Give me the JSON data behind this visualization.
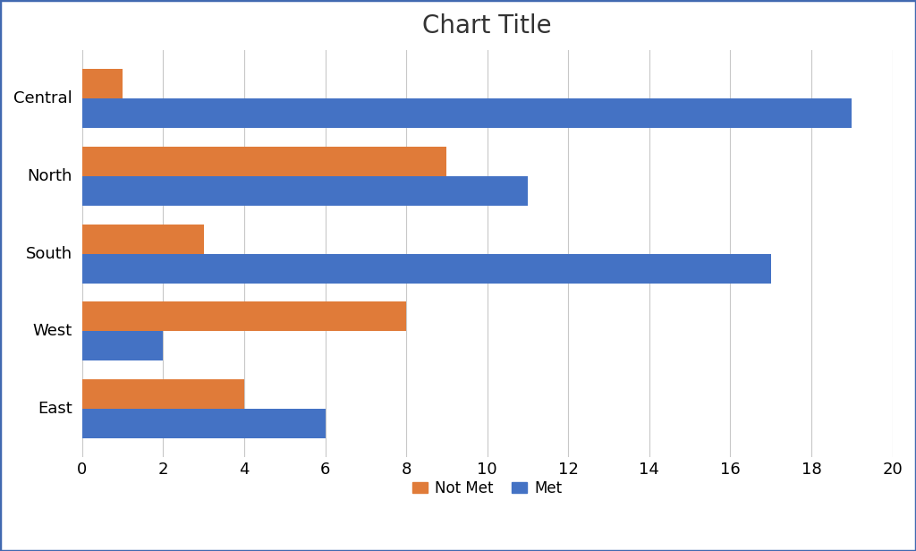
{
  "title": "Chart Title",
  "categories": [
    "Central",
    "North",
    "South",
    "West",
    "East"
  ],
  "not_met": [
    1,
    9,
    3,
    8,
    4
  ],
  "met": [
    19,
    11,
    17,
    2,
    6
  ],
  "not_met_color": "#E07B39",
  "met_color": "#4472C4",
  "xlim": [
    0,
    20
  ],
  "xticks": [
    0,
    2,
    4,
    6,
    8,
    10,
    12,
    14,
    16,
    18,
    20
  ],
  "title_fontsize": 20,
  "tick_fontsize": 13,
  "legend_fontsize": 12,
  "bar_height": 0.38,
  "background_color": "#FFFFFF",
  "grid_color": "#C8C8C8",
  "border_color": "#4169B0",
  "legend_labels": [
    "Not Met",
    "Met"
  ]
}
